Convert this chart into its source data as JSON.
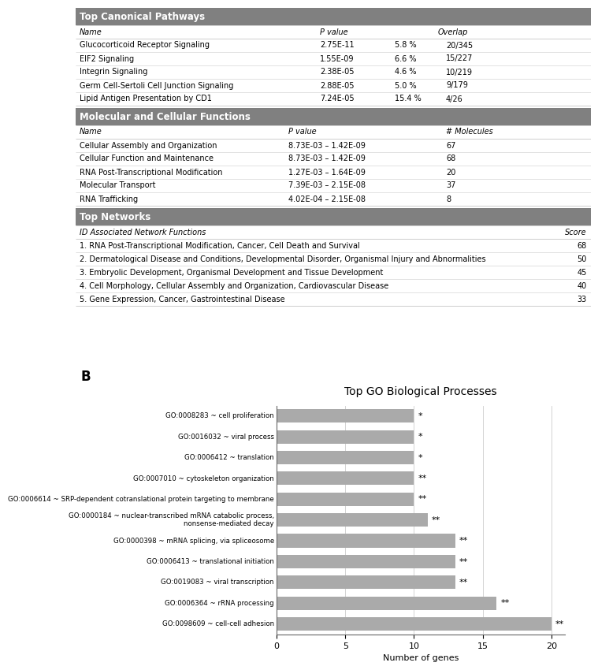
{
  "section1_title": "Top Canonical Pathways",
  "section1_rows": [
    [
      "Glucocorticoid Receptor Signaling",
      "2.75E-11",
      "5.8 %",
      "20/345"
    ],
    [
      "EIF2 Signaling",
      "1.55E-09",
      "6.6 %",
      "15/227"
    ],
    [
      "Integrin Signaling",
      "2.38E-05",
      "4.6 %",
      "10/219"
    ],
    [
      "Germ Cell-Sertoli Cell Junction Signaling",
      "2.88E-05",
      "5.0 %",
      "9/179"
    ],
    [
      "Lipid Antigen Presentation by CD1",
      "7.24E-05",
      "15.4 %",
      "4/26"
    ]
  ],
  "section2_title": "Molecular and Cellular Functions",
  "section2_rows": [
    [
      "Cellular Assembly and Organization",
      "8.73E-03 – 1.42E-09",
      "67"
    ],
    [
      "Cellular Function and Maintenance",
      "8.73E-03 – 1.42E-09",
      "68"
    ],
    [
      "RNA Post-Transcriptional Modification",
      "1.27E-03 – 1.64E-09",
      "20"
    ],
    [
      "Molecular Transport",
      "7.39E-03 – 2.15E-08",
      "37"
    ],
    [
      "RNA Trafficking",
      "4.02E-04 – 2.15E-08",
      "8"
    ]
  ],
  "section3_title": "Top Networks",
  "section3_rows": [
    [
      "1. RNA Post-Transcriptional Modification, Cancer, Cell Death and Survival",
      "68"
    ],
    [
      "2. Dermatological Disease and Conditions, Developmental Disorder, Organismal Injury and Abnormalities",
      "50"
    ],
    [
      "3. Embryolic Development, Organismal Development and Tissue Development",
      "45"
    ],
    [
      "4. Cell Morphology, Cellular Assembly and Organization, Cardiovascular Disease",
      "40"
    ],
    [
      "5. Gene Expression, Cancer, Gastrointestinal Disease",
      "33"
    ]
  ],
  "panel_b_label": "B",
  "bar_chart_title": "Top GO Biological Processes",
  "bar_xlabel": "Number of genes",
  "bar_categories": [
    "GO:0008283 ~ cell proliferation",
    "GO:0016032 ~ viral process",
    "GO:0006412 ~ translation",
    "GO:0007010 ~ cytoskeleton organization",
    "GO:0006614 ~ SRP-dependent cotranslational protein targeting to membrane",
    "GO:0000184 ~ nuclear-transcribed mRNA catabolic process,\nnonsense-mediated decay",
    "GO:0000398 ~ mRNA splicing, via spliceosome",
    "GO:0006413 ~ translational initiation",
    "GO:0019083 ~ viral transcription",
    "GO:0006364 ~ rRNA processing",
    "GO:0098609 ~ cell-cell adhesion"
  ],
  "bar_values": [
    10,
    10,
    10,
    10,
    10,
    11,
    13,
    13,
    13,
    16,
    20
  ],
  "bar_significance": [
    "*",
    "*",
    "*",
    "**",
    "**",
    "**",
    "**",
    "**",
    "**",
    "**",
    "**"
  ],
  "bar_color": "#aaaaaa",
  "bar_xlim": [
    0,
    21
  ],
  "bar_xticks": [
    0,
    5,
    10,
    15,
    20
  ],
  "header_bg_color": "#808080",
  "header_text_color": "#ffffff"
}
